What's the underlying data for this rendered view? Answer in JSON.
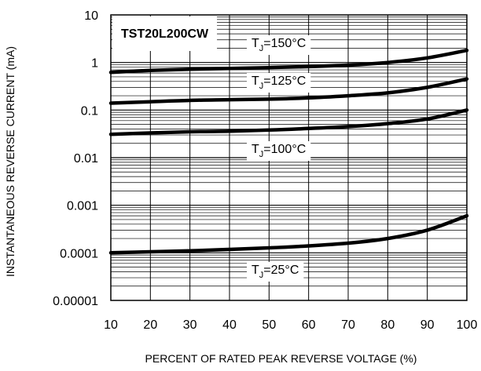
{
  "chart_data": {
    "type": "line",
    "title": "TST20L200CW",
    "xlabel": "PERCENT OF RATED PEAK REVERSE VOLTAGE (%)",
    "ylabel": "INSTANTANEOUS REVERSE CURRENT (mA)",
    "xlim": [
      10,
      100
    ],
    "ylim": [
      1e-05,
      10
    ],
    "yscale": "log",
    "grid": true,
    "x_ticks": [
      "10",
      "20",
      "30",
      "40",
      "50",
      "60",
      "70",
      "80",
      "90",
      "100"
    ],
    "y_ticks": [
      "10",
      "1",
      "0.1",
      "0.01",
      "0.001",
      "0.0001",
      "0.00001"
    ],
    "annotations": [
      {
        "prefix": "T",
        "sub": "J",
        "text": "=150°C"
      },
      {
        "prefix": "T",
        "sub": "J",
        "text": "=125°C"
      },
      {
        "prefix": "T",
        "sub": "J",
        "text": "=100°C"
      },
      {
        "prefix": "T",
        "sub": "J",
        "text": "=25°C"
      }
    ],
    "series": [
      {
        "x": [
          10,
          20,
          30,
          40,
          50,
          60,
          70,
          80,
          90,
          100
        ],
        "y": [
          0.62,
          0.68,
          0.72,
          0.75,
          0.78,
          0.82,
          0.88,
          1.0,
          1.25,
          1.8
        ]
      },
      {
        "x": [
          10,
          20,
          30,
          40,
          50,
          60,
          70,
          80,
          90,
          100
        ],
        "y": [
          0.14,
          0.15,
          0.16,
          0.165,
          0.17,
          0.18,
          0.2,
          0.23,
          0.3,
          0.45
        ]
      },
      {
        "x": [
          10,
          20,
          30,
          40,
          50,
          60,
          70,
          80,
          90,
          100
        ],
        "y": [
          0.031,
          0.033,
          0.035,
          0.036,
          0.038,
          0.041,
          0.045,
          0.052,
          0.065,
          0.1
        ]
      },
      {
        "x": [
          10,
          20,
          30,
          40,
          50,
          60,
          70,
          80,
          90,
          100
        ],
        "y": [
          0.0001,
          0.000105,
          0.00011,
          0.000118,
          0.000127,
          0.00014,
          0.00016,
          0.0002,
          0.0003,
          0.0006
        ]
      }
    ]
  }
}
